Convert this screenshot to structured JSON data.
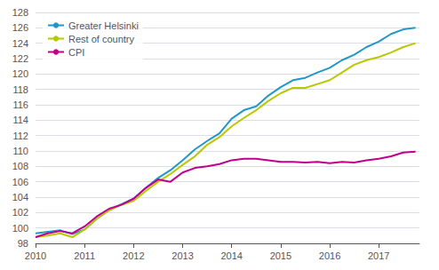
{
  "chart_data": {
    "type": "line",
    "x": [
      2010.0,
      2010.25,
      2010.5,
      2010.75,
      2011.0,
      2011.25,
      2011.5,
      2011.75,
      2012.0,
      2012.25,
      2012.5,
      2012.75,
      2013.0,
      2013.25,
      2013.5,
      2013.75,
      2014.0,
      2014.25,
      2014.5,
      2014.75,
      2015.0,
      2015.25,
      2015.5,
      2015.75,
      2016.0,
      2016.25,
      2016.5,
      2016.75,
      2017.0,
      2017.25,
      2017.5,
      2017.75
    ],
    "series": [
      {
        "name": "Greater Helsinki",
        "color": "#2196c8",
        "values": [
          99.3,
          99.5,
          99.7,
          99.2,
          99.8,
          101.2,
          102.3,
          103.1,
          103.8,
          105.2,
          106.5,
          107.5,
          108.8,
          110.2,
          111.3,
          112.3,
          114.2,
          115.3,
          115.8,
          117.2,
          118.3,
          119.2,
          119.5,
          120.2,
          120.8,
          121.8,
          122.5,
          123.5,
          124.2,
          125.2,
          125.8,
          126.0
        ]
      },
      {
        "name": "Rest of country",
        "color": "#b8c800",
        "values": [
          98.8,
          99.0,
          99.3,
          98.8,
          99.8,
          101.2,
          102.3,
          103.0,
          103.5,
          104.8,
          106.0,
          107.0,
          108.2,
          109.3,
          110.8,
          111.8,
          113.2,
          114.3,
          115.3,
          116.5,
          117.5,
          118.2,
          118.2,
          118.7,
          119.2,
          120.2,
          121.2,
          121.8,
          122.2,
          122.8,
          123.5,
          124.0
        ]
      },
      {
        "name": "CPI",
        "color": "#c0008c",
        "values": [
          98.8,
          99.3,
          99.6,
          99.3,
          100.2,
          101.5,
          102.5,
          103.0,
          103.8,
          105.2,
          106.3,
          106.0,
          107.2,
          107.8,
          108.0,
          108.3,
          108.8,
          109.0,
          109.0,
          108.8,
          108.6,
          108.6,
          108.5,
          108.6,
          108.4,
          108.6,
          108.5,
          108.8,
          109.0,
          109.3,
          109.8,
          109.9
        ]
      }
    ],
    "xlim": [
      2010.0,
      2017.83
    ],
    "xticks": [
      2010,
      2011,
      2012,
      2013,
      2014,
      2015,
      2016,
      2017
    ],
    "ylim": [
      98,
      128
    ],
    "yticks": [
      98,
      100,
      102,
      104,
      106,
      108,
      110,
      112,
      114,
      116,
      118,
      120,
      122,
      124,
      126,
      128
    ],
    "grid": true,
    "legend": "upper left"
  }
}
